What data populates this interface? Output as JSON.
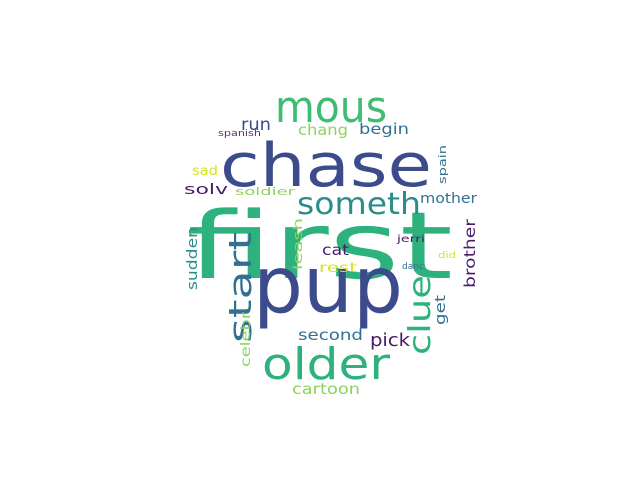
{
  "palette": {
    "navy": "#3b4b8c",
    "green": "#2db27d",
    "mint": "#3fbc73",
    "teal": "#2a8d8a",
    "teal_dark": "#31718f",
    "lime": "#8cd35b",
    "yellow": "#d8e21d",
    "purple": "#481a6c",
    "purple_mid": "#5a2d77"
  },
  "words": [
    {
      "id": "first",
      "text": "first",
      "color": "#2db27d"
    },
    {
      "id": "pup",
      "text": "pup",
      "color": "#3b4b8c"
    },
    {
      "id": "chase",
      "text": "chase",
      "color": "#3b4b8c"
    },
    {
      "id": "mous",
      "text": "mous",
      "color": "#3fbc73"
    },
    {
      "id": "older",
      "text": "older",
      "color": "#2db27d"
    },
    {
      "id": "someth",
      "text": "someth",
      "color": "#2a8d8a"
    },
    {
      "id": "start",
      "text": "start",
      "color": "#31718f"
    },
    {
      "id": "clue",
      "text": "clue",
      "color": "#2db27d"
    },
    {
      "id": "cartoon",
      "text": "cartoon",
      "color": "#8cd35b"
    },
    {
      "id": "second",
      "text": "second",
      "color": "#31718f"
    },
    {
      "id": "pick",
      "text": "pick",
      "color": "#481a6c"
    },
    {
      "id": "run",
      "text": "run",
      "color": "#3b4b8c"
    },
    {
      "id": "chang",
      "text": "chang",
      "color": "#8cd35b"
    },
    {
      "id": "begin",
      "text": "begin",
      "color": "#31718f"
    },
    {
      "id": "spanish",
      "text": "spanish",
      "color": "#5a2d77"
    },
    {
      "id": "sad",
      "text": "sad",
      "color": "#d8e21d"
    },
    {
      "id": "solv",
      "text": "solv",
      "color": "#481a6c"
    },
    {
      "id": "soldier",
      "text": "soldier",
      "color": "#8cd35b"
    },
    {
      "id": "mother",
      "text": "mother",
      "color": "#31718f"
    },
    {
      "id": "spain",
      "text": "spain",
      "color": "#31718f"
    },
    {
      "id": "cat",
      "text": "cat",
      "color": "#481a6c"
    },
    {
      "id": "rest",
      "text": "rest",
      "color": "#d8e21d"
    },
    {
      "id": "leash",
      "text": "leash",
      "color": "#8cd35b"
    },
    {
      "id": "sudden",
      "text": "sudden",
      "color": "#2a8d8a"
    },
    {
      "id": "jerri",
      "text": "jerri",
      "color": "#481a6c"
    },
    {
      "id": "danc",
      "text": "danc",
      "color": "#31718f"
    },
    {
      "id": "did",
      "text": "did",
      "color": "#d8e21d"
    },
    {
      "id": "brother",
      "text": "brother",
      "color": "#481a6c"
    },
    {
      "id": "get",
      "text": "get",
      "color": "#31718f"
    },
    {
      "id": "celebr",
      "text": "celebr",
      "color": "#8cd35b"
    }
  ]
}
